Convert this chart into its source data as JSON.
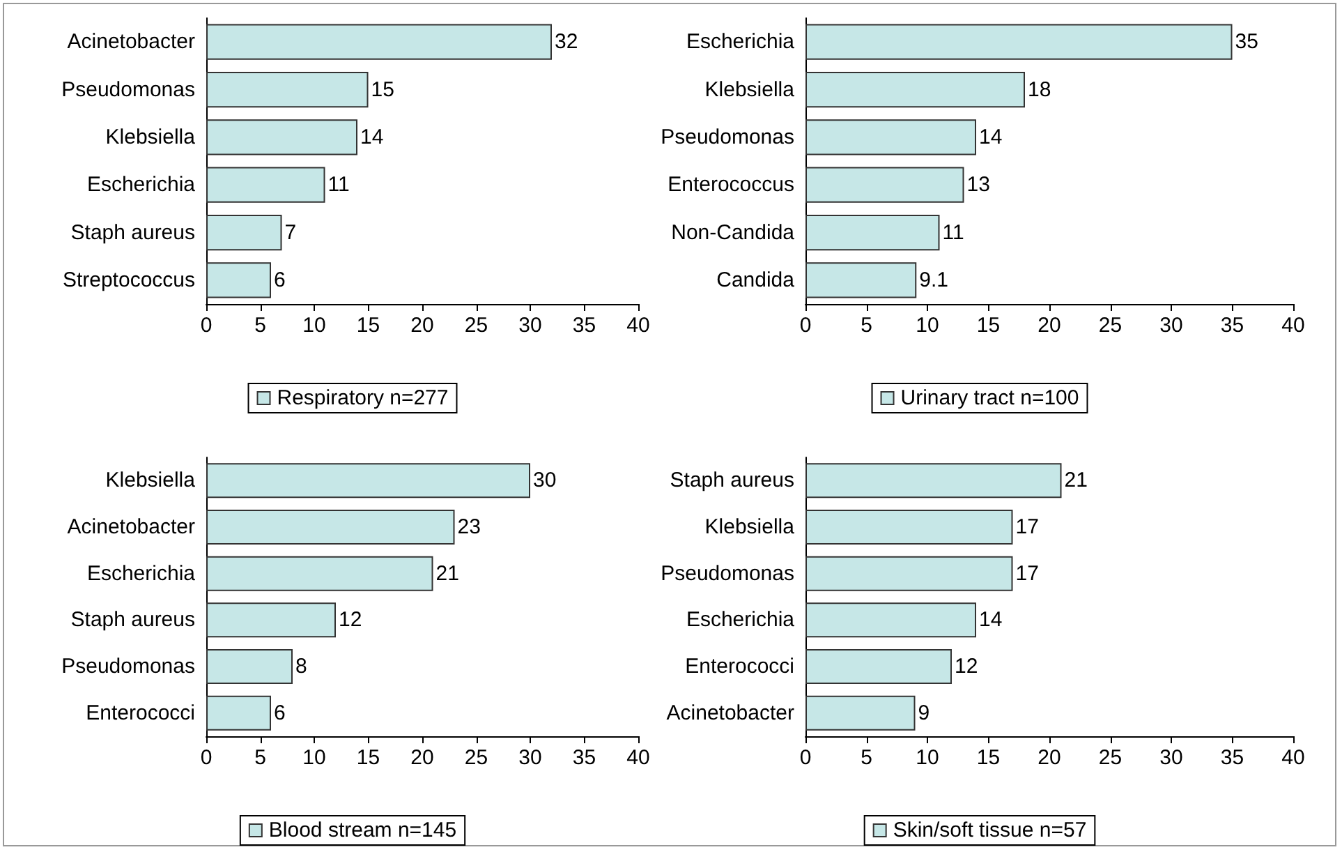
{
  "chart_data": [
    {
      "type": "bar",
      "orientation": "horizontal",
      "categories": [
        "Acinetobacter",
        "Pseudomonas",
        "Klebsiella",
        "Escherichia",
        "Staph aureus",
        "Streptococcus"
      ],
      "series": [
        {
          "name": "Respiratory n=277",
          "color": "#c6e7e7",
          "values": [
            32,
            15,
            14,
            11,
            7,
            6
          ]
        }
      ],
      "xlim": [
        0,
        40
      ],
      "xticks": [
        0,
        5,
        10,
        15,
        20,
        25,
        30,
        35,
        40
      ],
      "data_labels": true,
      "legend": "bottom",
      "grid": false
    },
    {
      "type": "bar",
      "orientation": "horizontal",
      "categories": [
        "Escherichia",
        "Klebsiella",
        "Pseudomonas",
        "Enterococcus",
        "Non-Candida",
        "Candida"
      ],
      "series": [
        {
          "name": "Urinary tract n=100",
          "color": "#c6e7e7",
          "values": [
            35,
            18,
            14,
            13,
            11,
            9.1
          ]
        }
      ],
      "xlim": [
        0,
        40
      ],
      "xticks": [
        0,
        5,
        10,
        15,
        20,
        25,
        30,
        35,
        40
      ],
      "data_labels": true,
      "legend": "bottom",
      "grid": false
    },
    {
      "type": "bar",
      "orientation": "horizontal",
      "categories": [
        "Klebsiella",
        "Acinetobacter",
        "Escherichia",
        "Staph aureus",
        "Pseudomonas",
        "Enterococci"
      ],
      "series": [
        {
          "name": "Blood stream n=145",
          "color": "#c6e7e7",
          "values": [
            30,
            23,
            21,
            12,
            8,
            6
          ]
        }
      ],
      "xlim": [
        0,
        40
      ],
      "xticks": [
        0,
        5,
        10,
        15,
        20,
        25,
        30,
        35,
        40
      ],
      "data_labels": true,
      "legend": "bottom",
      "grid": false
    },
    {
      "type": "bar",
      "orientation": "horizontal",
      "categories": [
        "Staph aureus",
        "Klebsiella",
        "Pseudomonas",
        "Escherichia",
        "Enterococci",
        "Acinetobacter"
      ],
      "series": [
        {
          "name": "Skin/soft tissue n=57",
          "color": "#c6e7e7",
          "values": [
            21,
            17,
            17,
            14,
            12,
            9
          ]
        }
      ],
      "xlim": [
        0,
        40
      ],
      "xticks": [
        0,
        5,
        10,
        15,
        20,
        25,
        30,
        35,
        40
      ],
      "data_labels": true,
      "legend": "bottom",
      "grid": false
    }
  ]
}
